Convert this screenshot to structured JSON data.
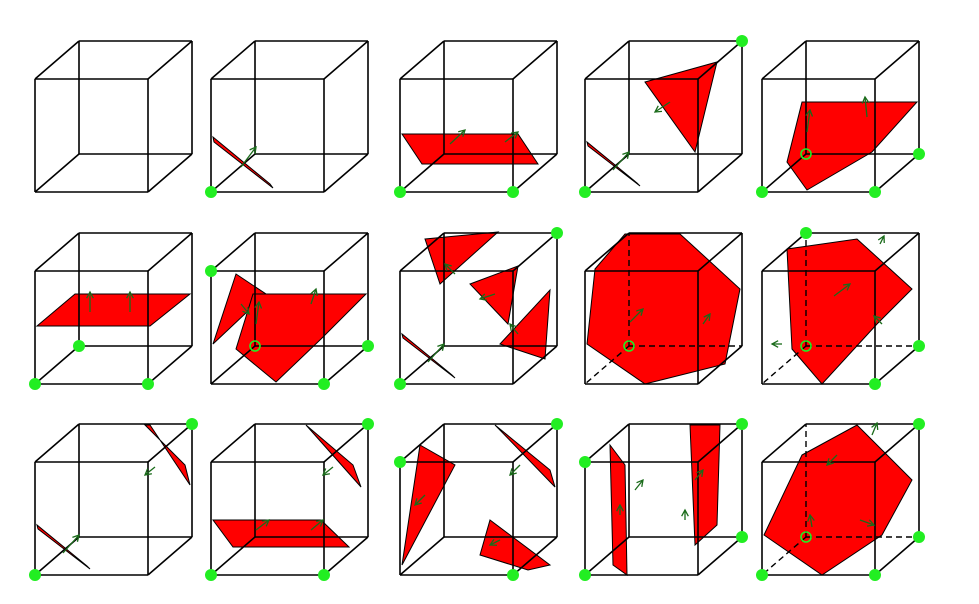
{
  "title": "",
  "colors": {
    "background": "#ffffff",
    "edge": "#000000",
    "triangle_fill": "#ff0000",
    "vertex_marker": "#22ee22",
    "normal_arrow": "#1a6b1a"
  },
  "figure": {
    "kind": "marching-cubes-cases",
    "rows": 3,
    "columns": 5,
    "cases": [
      {
        "case": 0,
        "row": 0,
        "col": 0,
        "active_vertices": []
      },
      {
        "case": 1,
        "row": 0,
        "col": 1,
        "active_vertices": [
          "v0"
        ]
      },
      {
        "case": 2,
        "row": 0,
        "col": 2,
        "active_vertices": [
          "v0",
          "v1"
        ]
      },
      {
        "case": 3,
        "row": 0,
        "col": 3,
        "active_vertices": [
          "v0",
          "v6"
        ]
      },
      {
        "case": 4,
        "row": 0,
        "col": 4,
        "active_vertices": [
          "v1",
          "v2",
          "v3"
        ]
      },
      {
        "case": 5,
        "row": 1,
        "col": 0,
        "active_vertices": [
          "v0",
          "v1",
          "v2",
          "v3"
        ]
      },
      {
        "case": 6,
        "row": 1,
        "col": 1,
        "active_vertices": [
          "v1",
          "v2",
          "v3",
          "v4"
        ]
      },
      {
        "case": 7,
        "row": 1,
        "col": 2,
        "active_vertices": [
          "v0",
          "v1",
          "v6"
        ]
      },
      {
        "case": 8,
        "row": 1,
        "col": 3,
        "active_vertices": [
          "v3"
        ]
      },
      {
        "case": 9,
        "row": 1,
        "col": 4,
        "active_vertices": [
          "v1",
          "v2",
          "v3",
          "v5"
        ]
      },
      {
        "case": 10,
        "row": 2,
        "col": 0,
        "active_vertices": [
          "v0",
          "v6"
        ]
      },
      {
        "case": 11,
        "row": 2,
        "col": 1,
        "active_vertices": [
          "v0",
          "v1",
          "v6"
        ]
      },
      {
        "case": 12,
        "row": 2,
        "col": 2,
        "active_vertices": [
          "v1",
          "v5",
          "v7"
        ]
      },
      {
        "case": 13,
        "row": 2,
        "col": 3,
        "active_vertices": [
          "v2",
          "v3",
          "v5",
          "v6"
        ]
      },
      {
        "case": 14,
        "row": 2,
        "col": 4,
        "active_vertices": [
          "v0",
          "v2",
          "v3",
          "v6"
        ]
      }
    ]
  }
}
